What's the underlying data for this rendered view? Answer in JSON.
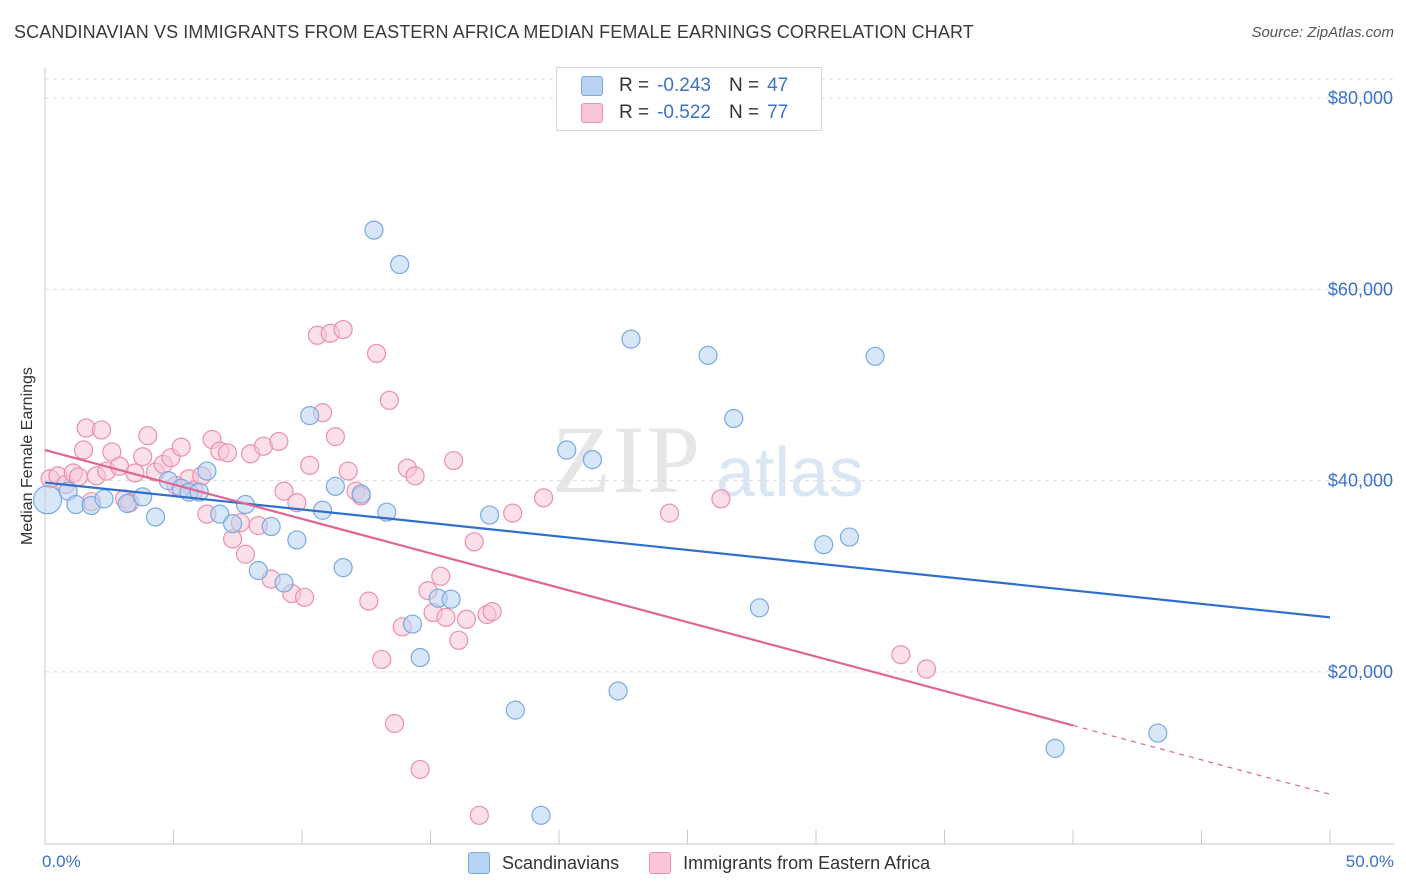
{
  "title": "SCANDINAVIAN VS IMMIGRANTS FROM EASTERN AFRICA MEDIAN FEMALE EARNINGS CORRELATION CHART",
  "source": "Source: ZipAtlas.com",
  "watermark": {
    "zip": "ZIP",
    "atlas": "atlas"
  },
  "legend": {
    "r_label": "R =",
    "n_label": "N =",
    "rows": [
      {
        "r": "-0.243",
        "n": "47"
      },
      {
        "r": "-0.522",
        "n": "77"
      }
    ]
  },
  "bottom_legend": [
    "Scandinavians",
    "Immigrants from Eastern Africa"
  ],
  "colors": {
    "blue_fill": "#b8d3f3",
    "blue_stroke": "#7aa9e2",
    "blue_line": "#2f6fcb",
    "pink_fill": "#f8c6d6",
    "pink_stroke": "#ec8fae",
    "pink_line": "#e0668f",
    "grid": "#dcdcdc",
    "tick_text": "#3a72c8"
  },
  "chart_data": {
    "type": "scatter",
    "title": "SCANDINAVIAN VS IMMIGRANTS FROM EASTERN AFRICA MEDIAN FEMALE EARNINGS CORRELATION CHART",
    "xlabel": "",
    "ylabel": "Median Female Earnings",
    "xlim": [
      0,
      50
    ],
    "ylim": [
      2000,
      82000
    ],
    "x_tick_labels": [
      "0.0%",
      "50.0%"
    ],
    "y_ticks": [
      20000,
      40000,
      60000,
      80000
    ],
    "y_tick_labels": [
      "$20,000",
      "$40,000",
      "$60,000",
      "$80,000"
    ],
    "grid": true,
    "legend_position": "top-center",
    "series": [
      {
        "name": "Scandinavians",
        "r": -0.243,
        "n": 47,
        "trend": {
          "x": [
            0,
            50
          ],
          "y": [
            39800,
            25700
          ]
        },
        "points": [
          [
            0.1,
            38000
          ],
          [
            0.9,
            38900
          ],
          [
            1.2,
            37500
          ],
          [
            1.8,
            37400
          ],
          [
            2.3,
            38100
          ],
          [
            3.2,
            37600
          ],
          [
            3.8,
            38300
          ],
          [
            4.3,
            36200
          ],
          [
            4.8,
            40000
          ],
          [
            5.3,
            39200
          ],
          [
            5.6,
            38800
          ],
          [
            6.0,
            38800
          ],
          [
            6.3,
            41000
          ],
          [
            6.8,
            36500
          ],
          [
            7.3,
            35500
          ],
          [
            7.8,
            37500
          ],
          [
            8.3,
            30600
          ],
          [
            8.8,
            35200
          ],
          [
            9.3,
            29300
          ],
          [
            9.8,
            33800
          ],
          [
            10.3,
            46800
          ],
          [
            10.8,
            36900
          ],
          [
            11.3,
            39400
          ],
          [
            11.6,
            30900
          ],
          [
            12.3,
            38600
          ],
          [
            12.8,
            66200
          ],
          [
            13.3,
            36700
          ],
          [
            13.8,
            62600
          ],
          [
            14.3,
            25000
          ],
          [
            14.6,
            21500
          ],
          [
            15.3,
            27700
          ],
          [
            15.8,
            27600
          ],
          [
            17.3,
            36400
          ],
          [
            18.3,
            16000
          ],
          [
            19.3,
            5000
          ],
          [
            20.3,
            43200
          ],
          [
            21.3,
            42200
          ],
          [
            22.3,
            18000
          ],
          [
            22.8,
            54800
          ],
          [
            25.8,
            53100
          ],
          [
            26.8,
            46500
          ],
          [
            27.8,
            26700
          ],
          [
            30.3,
            33300
          ],
          [
            31.3,
            34100
          ],
          [
            32.3,
            53000
          ],
          [
            39.3,
            12000
          ],
          [
            43.3,
            13600
          ]
        ]
      },
      {
        "name": "Immigrants from Eastern Africa",
        "r": -0.522,
        "n": 77,
        "trend": {
          "x": [
            0,
            40
          ],
          "y": [
            43200,
            14400
          ]
        },
        "trend_dashed": {
          "x": [
            40,
            50
          ],
          "y": [
            14400,
            7200
          ]
        },
        "points": [
          [
            0.2,
            40200
          ],
          [
            0.5,
            40500
          ],
          [
            0.8,
            39600
          ],
          [
            1.1,
            40800
          ],
          [
            1.3,
            40400
          ],
          [
            1.5,
            43200
          ],
          [
            1.6,
            45500
          ],
          [
            1.8,
            37800
          ],
          [
            2.0,
            40500
          ],
          [
            2.2,
            45300
          ],
          [
            2.4,
            41000
          ],
          [
            2.6,
            43000
          ],
          [
            2.9,
            41500
          ],
          [
            3.1,
            38100
          ],
          [
            3.3,
            37700
          ],
          [
            3.5,
            40800
          ],
          [
            3.8,
            42500
          ],
          [
            4.0,
            44700
          ],
          [
            4.3,
            40900
          ],
          [
            4.6,
            41700
          ],
          [
            4.9,
            42400
          ],
          [
            5.1,
            39500
          ],
          [
            5.3,
            43500
          ],
          [
            5.6,
            40200
          ],
          [
            5.8,
            39000
          ],
          [
            6.1,
            40500
          ],
          [
            6.3,
            36500
          ],
          [
            6.5,
            44300
          ],
          [
            6.8,
            43100
          ],
          [
            7.1,
            42900
          ],
          [
            7.3,
            33900
          ],
          [
            7.6,
            35600
          ],
          [
            7.8,
            32300
          ],
          [
            8.0,
            42800
          ],
          [
            8.3,
            35300
          ],
          [
            8.5,
            43600
          ],
          [
            8.8,
            29700
          ],
          [
            9.1,
            44100
          ],
          [
            9.3,
            38900
          ],
          [
            9.6,
            28200
          ],
          [
            9.8,
            37700
          ],
          [
            10.1,
            27800
          ],
          [
            10.3,
            41600
          ],
          [
            10.6,
            55200
          ],
          [
            10.8,
            47100
          ],
          [
            11.1,
            55400
          ],
          [
            11.3,
            44600
          ],
          [
            11.6,
            55800
          ],
          [
            11.8,
            41000
          ],
          [
            12.1,
            38900
          ],
          [
            12.3,
            38400
          ],
          [
            12.6,
            27400
          ],
          [
            12.9,
            53300
          ],
          [
            13.1,
            21300
          ],
          [
            13.4,
            48400
          ],
          [
            13.6,
            14600
          ],
          [
            13.9,
            24700
          ],
          [
            14.1,
            41300
          ],
          [
            14.4,
            40500
          ],
          [
            14.6,
            9800
          ],
          [
            14.9,
            28500
          ],
          [
            15.1,
            26200
          ],
          [
            15.4,
            30000
          ],
          [
            15.6,
            25700
          ],
          [
            15.9,
            42100
          ],
          [
            16.1,
            23300
          ],
          [
            16.4,
            25500
          ],
          [
            16.7,
            33600
          ],
          [
            16.9,
            5000
          ],
          [
            17.2,
            26000
          ],
          [
            17.4,
            26300
          ],
          [
            18.2,
            36600
          ],
          [
            19.4,
            38200
          ],
          [
            24.3,
            36600
          ],
          [
            26.3,
            38100
          ],
          [
            33.3,
            21800
          ],
          [
            34.3,
            20300
          ]
        ]
      }
    ]
  }
}
